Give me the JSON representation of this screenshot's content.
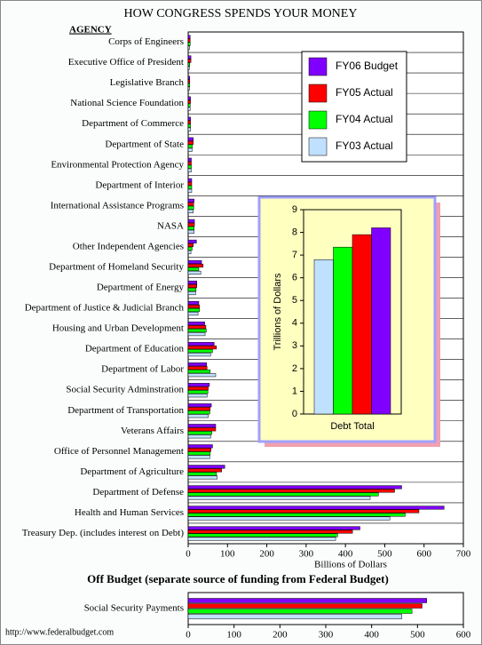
{
  "chart_data": [
    {
      "type": "barh",
      "title": "HOW CONGRESS SPENDS YOUR MONEY",
      "category_header": "AGENCY",
      "xlabel": "Billions of Dollars",
      "categories": [
        "Corps of Engineers",
        "Executive Office of President",
        "Legislative Branch",
        "National Science Foundation",
        "Department of Commerce",
        "Department of State",
        "Environmental Protection Agency",
        "Department of Interior",
        "International Assistance Programs",
        "NASA",
        "Other Independent Agencies",
        "Department of Homeland Security",
        "Department of Energy",
        "Department of Justice & Judicial Branch",
        "Housing and Urban Development",
        "Department of Education",
        "Department of Labor",
        "Social Security Adminstration",
        "Department of Transportation",
        "Veterans Affairs",
        "Office of Personnel Management",
        "Department of Agriculture",
        "Department of Defense",
        "Health and Human Services",
        "Treasury Dep. (includes interest on Debt)"
      ],
      "series": [
        {
          "name": "FY06 Budget",
          "color": "#8000ff",
          "values": [
            5,
            7,
            4,
            6,
            6,
            13,
            8,
            9,
            15,
            16,
            21,
            34,
            22,
            27,
            42,
            66,
            47,
            54,
            59,
            70,
            62,
            93,
            543,
            651,
            437
          ]
        },
        {
          "name": "FY05 Actual",
          "color": "#ff0000",
          "values": [
            5,
            7,
            4,
            6,
            6,
            13,
            8,
            9,
            14,
            16,
            13,
            38,
            22,
            29,
            45,
            72,
            48,
            51,
            56,
            70,
            58,
            85,
            525,
            587,
            418
          ]
        },
        {
          "name": "FY04 Actual",
          "color": "#00ff00",
          "values": [
            5,
            4,
            4,
            5,
            6,
            11,
            8,
            9,
            14,
            15,
            10,
            27,
            20,
            29,
            46,
            62,
            56,
            50,
            55,
            60,
            56,
            72,
            484,
            552,
            380
          ]
        },
        {
          "name": "FY03 Actual",
          "color": "#c0e0ff",
          "values": [
            4,
            3,
            4,
            5,
            6,
            10,
            8,
            9,
            13,
            15,
            7,
            32,
            19,
            25,
            43,
            57,
            70,
            48,
            51,
            57,
            55,
            74,
            463,
            513,
            375
          ]
        }
      ],
      "xlim": [
        0,
        700
      ],
      "xticks": [
        0,
        100,
        200,
        300,
        400,
        500,
        600,
        700
      ]
    },
    {
      "type": "bar",
      "ylabel": "Trillions of Dollars",
      "categories": [
        "Debt Total"
      ],
      "series": [
        {
          "color": "#c0e0ff",
          "values": [
            6.8
          ]
        },
        {
          "color": "#00ff00",
          "values": [
            7.35
          ]
        },
        {
          "color": "#ff0000",
          "values": [
            7.9
          ]
        },
        {
          "color": "#8000ff",
          "values": [
            8.2
          ]
        }
      ],
      "ylim": [
        0,
        9
      ],
      "yticks": [
        0,
        1,
        2,
        3,
        4,
        5,
        6,
        7,
        8,
        9
      ]
    },
    {
      "type": "barh",
      "title": "Off Budget (separate source of funding from Federal Budget)",
      "categories": [
        "Social Security Payments"
      ],
      "series": [
        {
          "color": "#8000ff",
          "values": [
            520
          ]
        },
        {
          "color": "#ff0000",
          "values": [
            510
          ]
        },
        {
          "color": "#00ff00",
          "values": [
            488
          ]
        },
        {
          "color": "#c0e0ff",
          "values": [
            466
          ]
        }
      ],
      "xlim": [
        0,
        600
      ],
      "xticks": [
        0,
        100,
        200,
        300,
        400,
        500,
        600
      ]
    }
  ],
  "footer": "http://www.federalbudget.com"
}
